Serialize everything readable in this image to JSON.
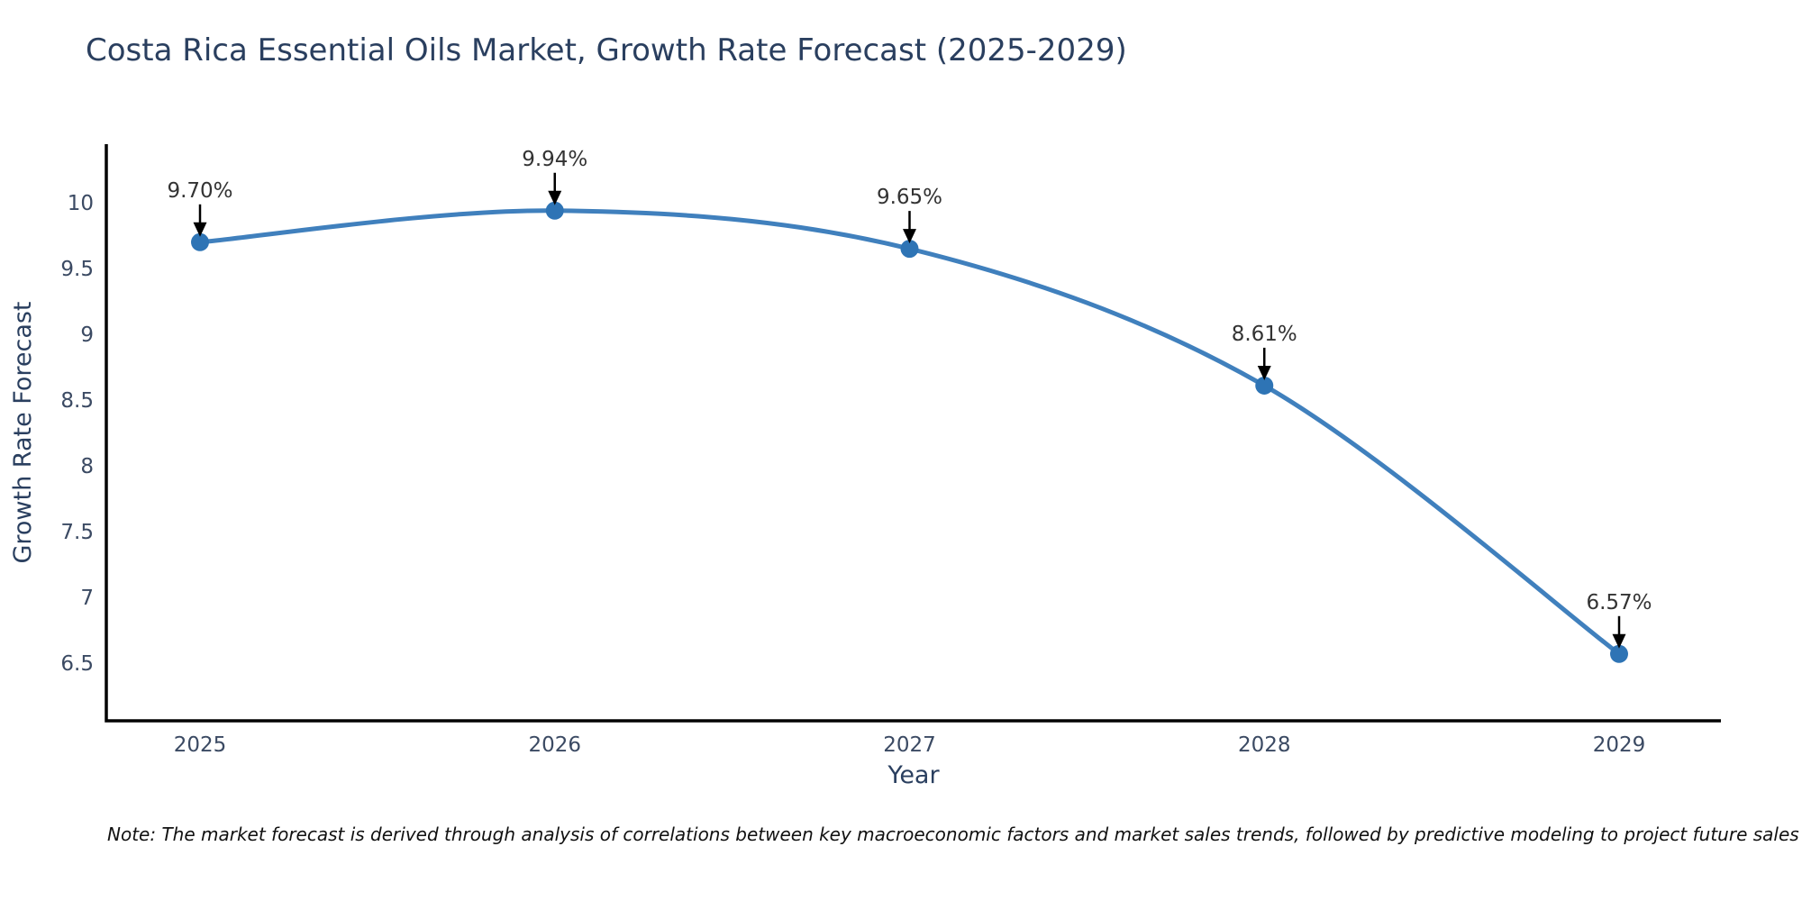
{
  "page": {
    "title": "Costa Rica Essential Oils Market, Growth Rate Forecast (2025-2029)",
    "footnote": "Note: The market forecast is derived through analysis of correlations between key macroeconomic factors and market sales trends, followed by predictive modeling to project future sales"
  },
  "chart_data": {
    "type": "line",
    "title": "Costa Rica Essential Oils Market, Growth Rate Forecast (2025-2029)",
    "xlabel": "Year",
    "ylabel": "Growth Rate Forecast",
    "categories": [
      "2025",
      "2026",
      "2027",
      "2028",
      "2029"
    ],
    "x": [
      2025,
      2026,
      2027,
      2028,
      2029
    ],
    "values": [
      9.7,
      9.94,
      9.65,
      8.61,
      6.57
    ],
    "point_labels": [
      "9.70%",
      "9.94%",
      "9.65%",
      "8.61%",
      "6.57%"
    ],
    "yticks": [
      6.5,
      7,
      7.5,
      8,
      8.5,
      9,
      9.5,
      10
    ],
    "ylim": [
      6.06,
      10.45
    ],
    "grid": false,
    "legend": "none",
    "line_shape": "spline",
    "marker_style": "circle",
    "annotation_arrow": "down",
    "colors": {
      "line": "#4080bd",
      "marker": "#2e74b5",
      "axis": "#000000",
      "title_text": "#2a3f5f",
      "tick_text": "#3b4a63",
      "annotation_text": "#333333",
      "arrow": "#000000",
      "background": "#ffffff"
    }
  }
}
